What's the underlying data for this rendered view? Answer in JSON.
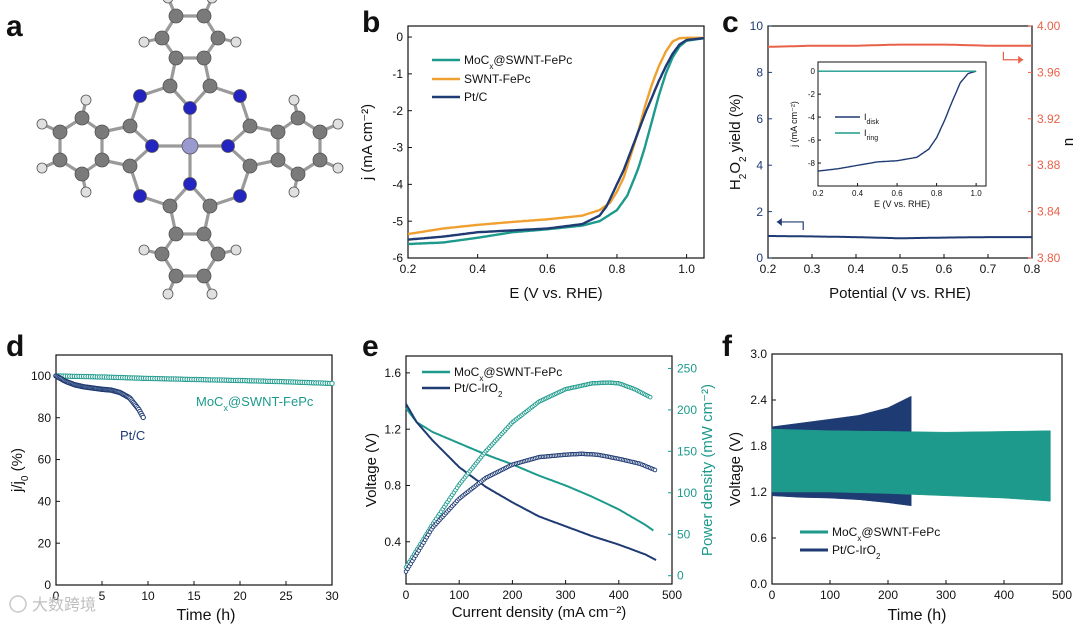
{
  "colors": {
    "teal": "#1e9a8c",
    "navy": "#1f3b73",
    "orange": "#f0a030",
    "red": "#e8624a",
    "atom_c": "#7a7a7a",
    "atom_n": "#2424c0",
    "atom_h": "#e0e0e0",
    "atom_fe": "#9a9ad0"
  },
  "watermark": "大数跨境",
  "panels": {
    "a": {
      "label": "a"
    },
    "b": {
      "label": "b"
    },
    "c": {
      "label": "c"
    },
    "d": {
      "label": "d"
    },
    "e": {
      "label": "e"
    },
    "f": {
      "label": "f"
    }
  },
  "chart_data": [
    {
      "panel": "b",
      "type": "line",
      "xlabel": "E (V vs. RHE)",
      "ylabel": "j (mA cm⁻²)",
      "xlim": [
        0.2,
        1.05
      ],
      "ylim": [
        -6,
        0.3
      ],
      "xticks": [
        0.2,
        0.4,
        0.6,
        0.8,
        1.0
      ],
      "xtick_labels": [
        "0.2",
        "0.4",
        "0.6",
        "0.8",
        "1.0"
      ],
      "yticks": [
        0,
        -1,
        -2,
        -3,
        -4,
        -5,
        -6
      ],
      "ytick_labels": [
        "0",
        "-1",
        "-2",
        "-3",
        "-4",
        "-5",
        "-6"
      ],
      "legend_position": "top-left",
      "series": [
        {
          "name": "MoCx@SWNT-FePc",
          "color": "#1e9a8c",
          "x": [
            0.2,
            0.3,
            0.4,
            0.5,
            0.6,
            0.7,
            0.75,
            0.8,
            0.83,
            0.86,
            0.88,
            0.9,
            0.92,
            0.94,
            0.96,
            0.98,
            1.0,
            1.05
          ],
          "y": [
            -5.62,
            -5.58,
            -5.45,
            -5.3,
            -5.22,
            -5.12,
            -5.0,
            -4.7,
            -4.3,
            -3.6,
            -3.0,
            -2.3,
            -1.6,
            -1.0,
            -0.55,
            -0.25,
            -0.1,
            -0.03
          ]
        },
        {
          "name": "SWNT-FePc",
          "color": "#f0a030",
          "x": [
            0.2,
            0.3,
            0.4,
            0.5,
            0.6,
            0.7,
            0.75,
            0.78,
            0.8,
            0.82,
            0.84,
            0.86,
            0.88,
            0.9,
            0.92,
            0.94,
            0.96,
            0.98,
            1.0,
            1.05
          ],
          "y": [
            -5.35,
            -5.2,
            -5.1,
            -5.02,
            -4.95,
            -4.85,
            -4.7,
            -4.5,
            -4.2,
            -3.8,
            -3.2,
            -2.6,
            -1.9,
            -1.3,
            -0.8,
            -0.4,
            -0.12,
            -0.03,
            -0.02,
            -0.02
          ]
        },
        {
          "name": "Pt/C",
          "color": "#1f3b73",
          "x": [
            0.2,
            0.3,
            0.4,
            0.5,
            0.6,
            0.7,
            0.75,
            0.77,
            0.8,
            0.82,
            0.84,
            0.86,
            0.88,
            0.9,
            0.92,
            0.94,
            0.96,
            0.98,
            1.0,
            1.05
          ],
          "y": [
            -5.5,
            -5.42,
            -5.3,
            -5.25,
            -5.2,
            -5.08,
            -4.85,
            -4.6,
            -4.0,
            -3.6,
            -3.1,
            -2.6,
            -2.1,
            -1.65,
            -1.2,
            -0.8,
            -0.45,
            -0.2,
            -0.08,
            -0.03
          ]
        }
      ]
    },
    {
      "panel": "c",
      "type": "line",
      "xlabel": "Potential (V vs. RHE)",
      "ylabel": "H2O2 yield (%)",
      "ylabel_right": "n",
      "xlim": [
        0.2,
        0.8
      ],
      "ylim": [
        0,
        10
      ],
      "ylim_right": [
        3.8,
        4.0
      ],
      "xticks": [
        0.2,
        0.3,
        0.4,
        0.5,
        0.6,
        0.7,
        0.8
      ],
      "xtick_labels": [
        "0.2",
        "0.3",
        "0.4",
        "0.5",
        "0.6",
        "0.7",
        "0.8"
      ],
      "yticks": [
        0,
        2,
        4,
        6,
        8,
        10
      ],
      "ytick_labels": [
        "0",
        "2",
        "4",
        "6",
        "8",
        "10"
      ],
      "yticks_right": [
        3.8,
        3.84,
        3.88,
        3.92,
        3.96,
        4.0
      ],
      "ytick_labels_right": [
        "3.80",
        "3.84",
        "3.88",
        "3.92",
        "3.96",
        "4.00"
      ],
      "series": [
        {
          "name": "H2O2 yield",
          "axis": "left",
          "color": "#1f3b73",
          "x": [
            0.2,
            0.3,
            0.4,
            0.5,
            0.6,
            0.7,
            0.8
          ],
          "y": [
            0.95,
            0.93,
            0.9,
            0.85,
            0.88,
            0.9,
            0.9
          ]
        },
        {
          "name": "n",
          "axis": "right",
          "color": "#e8624a",
          "x": [
            0.2,
            0.3,
            0.4,
            0.5,
            0.6,
            0.7,
            0.8
          ],
          "y": [
            3.982,
            3.983,
            3.983,
            3.984,
            3.984,
            3.983,
            3.983
          ]
        }
      ],
      "inset": {
        "xlabel": "E (V vs. RHE)",
        "ylabel": "j (mA cm⁻²)",
        "xlim": [
          0.2,
          1.05
        ],
        "ylim": [
          -10,
          0.8
        ],
        "xticks": [
          0.2,
          0.4,
          0.6,
          0.8,
          1.0
        ],
        "xtick_labels": [
          "0.2",
          "0.4",
          "0.6",
          "0.8",
          "1.0"
        ],
        "yticks": [
          0,
          -2,
          -4,
          -6,
          -8
        ],
        "ytick_labels": [
          "0",
          "-2",
          "-4",
          "-6",
          "-8"
        ],
        "series": [
          {
            "name": "Idisk",
            "color": "#1f3b73",
            "x": [
              0.2,
              0.3,
              0.4,
              0.5,
              0.6,
              0.7,
              0.76,
              0.8,
              0.84,
              0.88,
              0.92,
              0.96,
              1.0
            ],
            "y": [
              -8.7,
              -8.5,
              -8.2,
              -7.9,
              -7.8,
              -7.5,
              -6.8,
              -5.8,
              -4.3,
              -2.6,
              -1.0,
              -0.2,
              0.0
            ]
          },
          {
            "name": "Iring",
            "color": "#1e9a8c",
            "x": [
              0.2,
              1.0
            ],
            "y": [
              0.0,
              0.0
            ]
          }
        ]
      }
    },
    {
      "panel": "d",
      "type": "scatter",
      "xlabel": "Time (h)",
      "ylabel": "j/j0 (%)",
      "xlim": [
        0,
        30
      ],
      "ylim": [
        0,
        110
      ],
      "xticks": [
        0,
        5,
        10,
        15,
        20,
        25,
        30
      ],
      "xtick_labels": [
        "0",
        "5",
        "10",
        "15",
        "20",
        "25",
        "30"
      ],
      "yticks": [
        0,
        20,
        40,
        60,
        80,
        100
      ],
      "ytick_labels": [
        "0",
        "20",
        "40",
        "60",
        "80",
        "100"
      ],
      "annotations": [
        "MoCx@SWNT-FePc",
        "Pt/C"
      ],
      "series": [
        {
          "name": "MoCx@SWNT-FePc",
          "color": "#1e9a8c",
          "x": [
            0,
            5,
            10,
            15,
            20,
            25,
            30
          ],
          "y": [
            100,
            99.5,
            98.8,
            98.3,
            97.8,
            97.2,
            96.4
          ]
        },
        {
          "name": "Pt/C",
          "color": "#1f3b73",
          "x": [
            0,
            1,
            2,
            3,
            4,
            5,
            6,
            7,
            8,
            9,
            9.5
          ],
          "y": [
            100,
            97.5,
            95.8,
            94.8,
            94.2,
            93.6,
            93.2,
            92,
            89.5,
            84,
            80
          ]
        }
      ]
    },
    {
      "panel": "e",
      "type": "scatter",
      "xlabel": "Current density (mA cm⁻²)",
      "ylabel": "Voltage (V)",
      "ylabel_right": "Power density (mW cm⁻²)",
      "xlim": [
        0,
        500
      ],
      "ylim": [
        0.1,
        1.72
      ],
      "ylim_right": [
        -10,
        265
      ],
      "xticks": [
        0,
        100,
        200,
        300,
        400,
        500
      ],
      "xtick_labels": [
        "0",
        "100",
        "200",
        "300",
        "400",
        "500"
      ],
      "yticks": [
        0.4,
        0.8,
        1.2,
        1.6
      ],
      "ytick_labels": [
        "0.4",
        "0.8",
        "1.2",
        "1.6"
      ],
      "yticks_right": [
        0,
        50,
        100,
        150,
        200,
        250
      ],
      "ytick_labels_right": [
        "0",
        "50",
        "100",
        "150",
        "200",
        "250"
      ],
      "legend_position": "top-left",
      "series": [
        {
          "name": "MoCx@SWNT-FePc",
          "kind": "voltage",
          "axis": "left",
          "color": "#1e9a8c",
          "x": [
            0,
            20,
            50,
            100,
            150,
            200,
            250,
            300,
            350,
            400,
            450,
            465
          ],
          "y": [
            1.35,
            1.25,
            1.18,
            1.1,
            1.02,
            0.95,
            0.87,
            0.8,
            0.72,
            0.63,
            0.52,
            0.48
          ]
        },
        {
          "name": "Pt/C-IrO2",
          "kind": "voltage",
          "axis": "left",
          "color": "#1f3b73",
          "x": [
            0,
            20,
            50,
            100,
            150,
            200,
            250,
            300,
            350,
            400,
            450,
            470
          ],
          "y": [
            1.38,
            1.25,
            1.12,
            0.93,
            0.79,
            0.68,
            0.58,
            0.51,
            0.44,
            0.38,
            0.31,
            0.27
          ]
        },
        {
          "name": "MoCx@SWNT-FePc",
          "kind": "power",
          "axis": "right",
          "color": "#1e9a8c",
          "x": [
            0,
            50,
            100,
            150,
            200,
            250,
            300,
            350,
            380,
            400,
            430,
            460
          ],
          "y": [
            10,
            62,
            110,
            150,
            185,
            210,
            225,
            232,
            233,
            232,
            225,
            215
          ]
        },
        {
          "name": "Pt/C-IrO2",
          "kind": "power",
          "axis": "right",
          "color": "#1f3b73",
          "x": [
            0,
            50,
            100,
            150,
            200,
            250,
            300,
            330,
            360,
            400,
            440,
            470
          ],
          "y": [
            5,
            58,
            93,
            118,
            134,
            143,
            146,
            147,
            146,
            141,
            135,
            127
          ]
        }
      ]
    },
    {
      "panel": "f",
      "type": "area",
      "xlabel": "Time (h)",
      "ylabel": "Voltage (V)",
      "xlim": [
        0,
        500
      ],
      "ylim": [
        0,
        3.0
      ],
      "xticks": [
        0,
        100,
        200,
        300,
        400,
        500
      ],
      "xtick_labels": [
        "0",
        "100",
        "200",
        "300",
        "400",
        "500"
      ],
      "yticks": [
        0,
        0.6,
        1.2,
        1.8,
        2.4,
        3.0
      ],
      "ytick_labels": [
        "0.0",
        "0.6",
        "1.2",
        "1.8",
        "2.4",
        "3.0"
      ],
      "legend_position": "bottom-left",
      "series": [
        {
          "name": "MoCx@SWNT-FePc",
          "color": "#1e9a8c",
          "x": [
            0,
            100,
            200,
            300,
            400,
            480
          ],
          "upper": [
            2.02,
            2.0,
            1.99,
            1.98,
            1.99,
            2.0
          ],
          "lower": [
            1.2,
            1.2,
            1.18,
            1.15,
            1.12,
            1.08
          ]
        },
        {
          "name": "Pt/C-IrO2",
          "color": "#1f3b73",
          "x": [
            0,
            50,
            100,
            150,
            200,
            240
          ],
          "upper": [
            2.05,
            2.1,
            2.15,
            2.2,
            2.3,
            2.45
          ],
          "lower": [
            1.15,
            1.13,
            1.12,
            1.1,
            1.06,
            1.02
          ]
        }
      ]
    }
  ]
}
